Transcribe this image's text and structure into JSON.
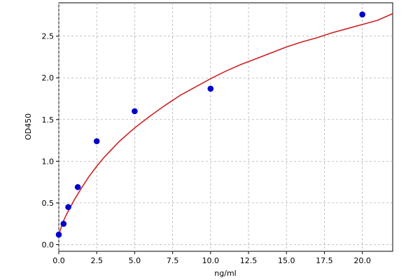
{
  "chart_data": {
    "type": "scatter",
    "title": "",
    "xlabel": "ng/ml",
    "ylabel": "OD450",
    "xlim": [
      0,
      22
    ],
    "ylim": [
      -0.08,
      2.9
    ],
    "grid": true,
    "x_ticks": [
      "0.0",
      "2.5",
      "5.0",
      "7.5",
      "10.0",
      "12.5",
      "15.0",
      "17.5",
      "20.0"
    ],
    "y_ticks": [
      "0.0",
      "0.5",
      "1.0",
      "1.5",
      "2.0",
      "2.5"
    ],
    "series": [
      {
        "kind": "points",
        "color": "#0000cc",
        "x": [
          0,
          0.313,
          0.625,
          1.25,
          2.5,
          5,
          10,
          20
        ],
        "y": [
          0.12,
          0.25,
          0.45,
          0.69,
          1.24,
          1.6,
          1.87,
          2.76
        ]
      },
      {
        "kind": "fit-curve",
        "color": "#cc2222",
        "x": [
          0,
          0.25,
          0.5,
          1,
          1.5,
          2,
          2.5,
          3,
          4,
          5,
          6,
          7,
          8,
          9,
          10,
          11,
          12,
          13,
          14,
          15,
          16,
          17,
          18,
          19,
          20,
          21,
          22
        ],
        "y": [
          0.12,
          0.26,
          0.36,
          0.53,
          0.68,
          0.82,
          0.94,
          1.05,
          1.24,
          1.4,
          1.54,
          1.67,
          1.79,
          1.89,
          1.99,
          2.08,
          2.16,
          2.23,
          2.3,
          2.37,
          2.43,
          2.48,
          2.54,
          2.59,
          2.64,
          2.69,
          2.77
        ]
      }
    ]
  }
}
